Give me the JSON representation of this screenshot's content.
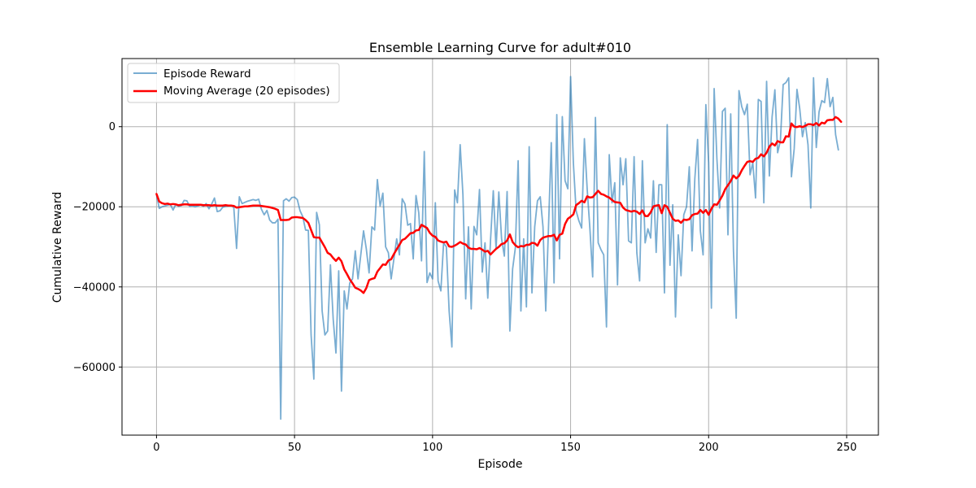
{
  "chart_data": {
    "type": "line",
    "title": "Ensemble Learning Curve for adult#010",
    "xlabel": "Episode",
    "ylabel": "Cumulative Reward",
    "xlim": [
      -12.5,
      261.5
    ],
    "ylim": [
      -77000,
      17000
    ],
    "xticks": [
      0,
      50,
      100,
      150,
      200,
      250
    ],
    "yticks": [
      -60000,
      -40000,
      -20000,
      0
    ],
    "ytick_labels": [
      "−60000",
      "−40000",
      "−20000",
      "0"
    ],
    "grid": true,
    "legend_position": "top-left",
    "colors": {
      "episode": "#1f77b4",
      "moving_average": "#ff0000"
    },
    "series": [
      {
        "name": "Episode Reward",
        "x_start": 0,
        "values": [
          -17000,
          -20400,
          -20000,
          -19800,
          -19600,
          -19400,
          -20800,
          -19400,
          -19900,
          -19700,
          -18400,
          -18500,
          -19900,
          -19800,
          -20000,
          -19800,
          -19500,
          -19900,
          -19200,
          -20500,
          -19300,
          -17800,
          -21200,
          -21000,
          -20100,
          -19900,
          -19800,
          -19600,
          -20200,
          -30400,
          -17500,
          -19200,
          -18900,
          -18600,
          -18400,
          -18200,
          -18400,
          -18100,
          -20600,
          -22000,
          -20900,
          -23300,
          -24000,
          -24000,
          -23100,
          -73000,
          -18500,
          -18000,
          -18600,
          -17700,
          -17600,
          -18200,
          -21000,
          -22500,
          -25800,
          -25900,
          -52000,
          -63000,
          -21400,
          -24500,
          -46000,
          -52000,
          -51000,
          -34500,
          -48000,
          -56500,
          -36000,
          -66000,
          -41000,
          -45500,
          -39000,
          -38000,
          -31000,
          -38000,
          -32000,
          -26000,
          -30500,
          -36500,
          -25000,
          -25800,
          -13200,
          -19800,
          -16600,
          -30000,
          -31500,
          -38000,
          -33000,
          -28000,
          -32000,
          -18000,
          -19300,
          -24600,
          -24200,
          -33000,
          -17200,
          -21500,
          -33500,
          -6200,
          -38900,
          -36500,
          -38000,
          -19000,
          -38500,
          -41000,
          -29000,
          -30000,
          -46000,
          -55000,
          -15800,
          -19000,
          -4500,
          -17000,
          -43000,
          -25000,
          -45500,
          -24900,
          -27000,
          -15700,
          -36300,
          -29000,
          -42800,
          -28300,
          -16000,
          -30600,
          -16300,
          -28000,
          -32300,
          -16200,
          -51000,
          -35500,
          -30200,
          -8500,
          -46000,
          -28000,
          -45000,
          -5000,
          -41500,
          -25000,
          -18500,
          -17500,
          -25000,
          -46000,
          -25000,
          -4000,
          -39000,
          3000,
          -33000,
          2500,
          -13500,
          -15500,
          12500,
          -9000,
          -21000,
          -23500,
          -25300,
          -3000,
          -15500,
          -25500,
          -37500,
          2300,
          -29000,
          -30700,
          -32000,
          -50000,
          -7000,
          -19000,
          -14000,
          -39500,
          -7800,
          -14500,
          -8000,
          -28500,
          -29000,
          -7500,
          -31500,
          -38500,
          -8500,
          -29000,
          -25500,
          -27800,
          -13500,
          -31400,
          -14500,
          -14500,
          -41500,
          500,
          -34600,
          -19500,
          -47500,
          -27000,
          -37200,
          -22000,
          -20000,
          -10000,
          -31000,
          -13000,
          -3200,
          -26000,
          -32000,
          5500,
          -9000,
          -45300,
          9500,
          -8000,
          -20300,
          3800,
          4600,
          -27000,
          3200,
          -31000,
          -47800,
          9000,
          5000,
          3000,
          5600,
          -12000,
          -9000,
          -17800,
          6800,
          6300,
          -19000,
          11300,
          -12300,
          2500,
          9200,
          -6500,
          -3500,
          10500,
          11000,
          12200,
          -12500,
          -5500,
          9300,
          4500,
          -2500,
          1000,
          -4500,
          -20300,
          12200,
          -5200,
          3700,
          6500,
          6000,
          12000,
          5000,
          7300,
          -2000,
          -5800
        ]
      },
      {
        "name": "Moving Average (20 episodes)",
        "x_start": 0,
        "values": [
          -16800,
          -18700,
          -19100,
          -19300,
          -19200,
          -19400,
          -19300,
          -19400,
          -19600,
          -19500,
          -19400,
          -19400,
          -19500,
          -19500,
          -19500,
          -19500,
          -19500,
          -19600,
          -19600,
          -19600,
          -19700,
          -19600,
          -19700,
          -19700,
          -19700,
          -19600,
          -19700,
          -19700,
          -19800,
          -20200,
          -20100,
          -20000,
          -19900,
          -19900,
          -19800,
          -19700,
          -19700,
          -19700,
          -19800,
          -19900,
          -20000,
          -20100,
          -20300,
          -20500,
          -20800,
          -23300,
          -23300,
          -23300,
          -23200,
          -22700,
          -22600,
          -22600,
          -22700,
          -22800,
          -23300,
          -24000,
          -25800,
          -27600,
          -27700,
          -27700,
          -28900,
          -30100,
          -31500,
          -31900,
          -32800,
          -33500,
          -32700,
          -33600,
          -35600,
          -36800,
          -38100,
          -39100,
          -40200,
          -40500,
          -40900,
          -41500,
          -40300,
          -38300,
          -38000,
          -37800,
          -36200,
          -35300,
          -34400,
          -34500,
          -33400,
          -33100,
          -31800,
          -30600,
          -29500,
          -28300,
          -28000,
          -27300,
          -26600,
          -26500,
          -25900,
          -25800,
          -24500,
          -24900,
          -25300,
          -26500,
          -27200,
          -27500,
          -28400,
          -28700,
          -28900,
          -28700,
          -29900,
          -30000,
          -29700,
          -29300,
          -28800,
          -29200,
          -29400,
          -30200,
          -30500,
          -30500,
          -30600,
          -30300,
          -30700,
          -31200,
          -31000,
          -31900,
          -31200,
          -30500,
          -30000,
          -29300,
          -29100,
          -28400,
          -26900,
          -28800,
          -29600,
          -30100,
          -29800,
          -29900,
          -29500,
          -29500,
          -29000,
          -29100,
          -29700,
          -28300,
          -27700,
          -27500,
          -27300,
          -27300,
          -27000,
          -28400,
          -27000,
          -26700,
          -24300,
          -23000,
          -22500,
          -21900,
          -19600,
          -19100,
          -18500,
          -18900,
          -17400,
          -17700,
          -17600,
          -16800,
          -16000,
          -16800,
          -17000,
          -17400,
          -17700,
          -18300,
          -18800,
          -18900,
          -19000,
          -20200,
          -20800,
          -21000,
          -21200,
          -21000,
          -21200,
          -21800,
          -20900,
          -22300,
          -22300,
          -21400,
          -19900,
          -19700,
          -19600,
          -21600,
          -19600,
          -20000,
          -21500,
          -23000,
          -23500,
          -23400,
          -24000,
          -23200,
          -23300,
          -23100,
          -22100,
          -21800,
          -21700,
          -20800,
          -21500,
          -20800,
          -22000,
          -20500,
          -19400,
          -19500,
          -18400,
          -17200,
          -15600,
          -14600,
          -13600,
          -12200,
          -12900,
          -12300,
          -10900,
          -9800,
          -8800,
          -8600,
          -8800,
          -8000,
          -7800,
          -6900,
          -7400,
          -6500,
          -5000,
          -4200,
          -4700,
          -3600,
          -3900,
          -3900,
          -2400,
          -2500,
          800,
          0,
          -100,
          100,
          -100,
          200,
          600,
          600,
          400,
          900,
          300,
          1000,
          800,
          1600,
          1700,
          1700,
          2400,
          2000,
          1200
        ]
      }
    ]
  }
}
